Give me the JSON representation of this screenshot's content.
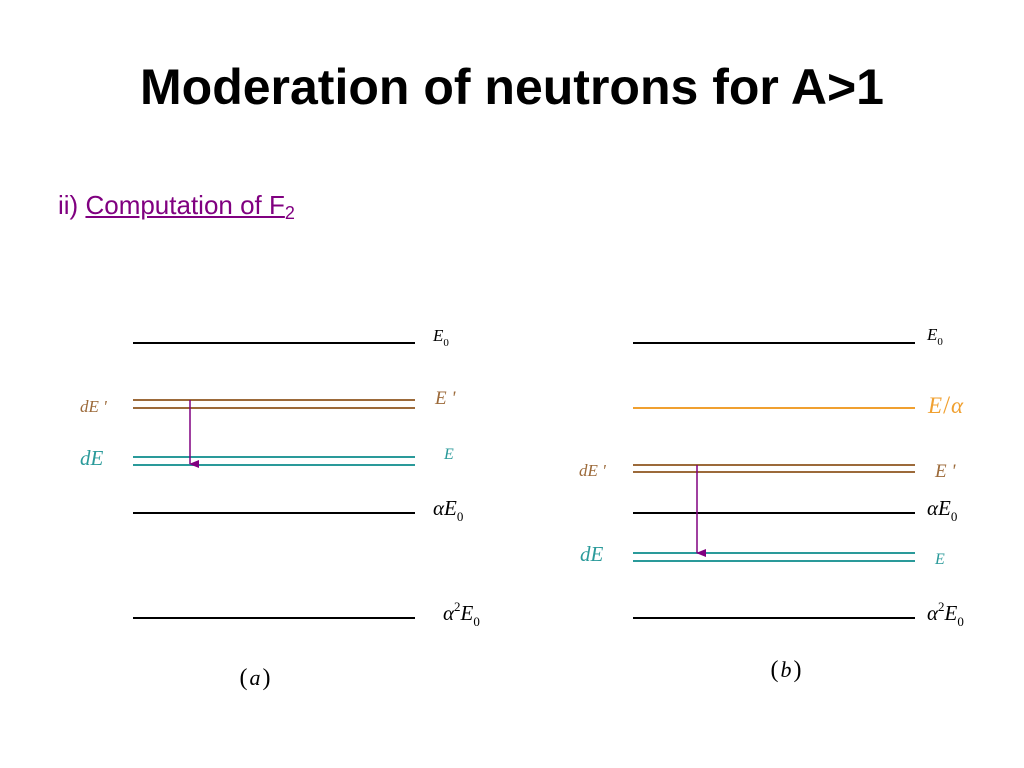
{
  "title": "Moderation of neutrons for A>1",
  "subtitle": {
    "prefix": "ii)",
    "link_text": "Computation of F",
    "link_sub": "2"
  },
  "colors": {
    "purple": "#800080",
    "brown": "#9c6a3a",
    "teal": "#2a9a9a",
    "orange": "#f0a030",
    "black": "#000000"
  },
  "panel_a": {
    "caption": "a",
    "labels": {
      "E0": "E",
      "E0_sub": "0",
      "Eprime": "E '",
      "E": "E",
      "alphaE0_alpha": "α",
      "alphaE0_E": "E",
      "alphaE0_sub": "0",
      "alpha2E0_alpha": "α",
      "alpha2E0_sup": "2",
      "alpha2E0_E": "E",
      "alpha2E0_sub": "0",
      "dEprime": "dE '",
      "dE": "dE"
    }
  },
  "panel_b": {
    "caption": "b",
    "labels": {
      "E0": "E",
      "E0_sub": "0",
      "E_over_alpha_E": "E",
      "E_over_alpha_slash": "/",
      "E_over_alpha_alpha": "α",
      "Eprime": "E '",
      "E": "E",
      "alphaE0_alpha": "α",
      "alphaE0_E": "E",
      "alphaE0_sub": "0",
      "alpha2E0_alpha": "α",
      "alpha2E0_sup": "2",
      "alpha2E0_E": "E",
      "alpha2E0_sub": "0",
      "dEprime": "dE '",
      "dE": "dE"
    }
  }
}
